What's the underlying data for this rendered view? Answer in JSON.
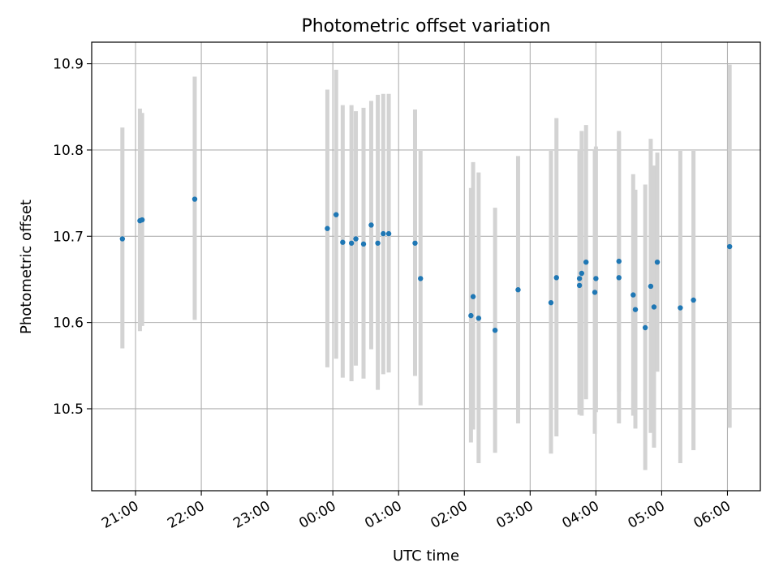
{
  "chart_data": {
    "type": "scatter",
    "title": "Photometric offset variation",
    "xlabel": "UTC time",
    "ylabel": "Photometric offset",
    "grid": true,
    "xlim": [
      "20:20",
      "06:30"
    ],
    "ylim": [
      10.405,
      10.925
    ],
    "x_ticks": [
      "21:00",
      "22:00",
      "23:00",
      "00:00",
      "01:00",
      "02:00",
      "03:00",
      "04:00",
      "05:00",
      "06:00"
    ],
    "y_ticks": [
      "10.5",
      "10.6",
      "10.7",
      "10.8",
      "10.9"
    ],
    "colors": {
      "point": "#1f77b4",
      "errorbar": "#d3d3d3",
      "grid": "#b0b0b0"
    },
    "points": [
      {
        "x": "20:48",
        "y": 10.697,
        "lo": 10.57,
        "hi": 10.826
      },
      {
        "x": "21:04",
        "y": 10.718,
        "lo": 10.59,
        "hi": 10.848
      },
      {
        "x": "21:06",
        "y": 10.719,
        "lo": 10.596,
        "hi": 10.843
      },
      {
        "x": "21:54",
        "y": 10.743,
        "lo": 10.603,
        "hi": 10.885
      },
      {
        "x": "23:55",
        "y": 10.709,
        "lo": 10.548,
        "hi": 10.87
      },
      {
        "x": "00:03",
        "y": 10.725,
        "lo": 10.558,
        "hi": 10.893
      },
      {
        "x": "00:09",
        "y": 10.693,
        "lo": 10.536,
        "hi": 10.852
      },
      {
        "x": "00:17",
        "y": 10.692,
        "lo": 10.532,
        "hi": 10.852
      },
      {
        "x": "00:21",
        "y": 10.697,
        "lo": 10.55,
        "hi": 10.845
      },
      {
        "x": "00:28",
        "y": 10.691,
        "lo": 10.535,
        "hi": 10.849
      },
      {
        "x": "00:35",
        "y": 10.713,
        "lo": 10.569,
        "hi": 10.857
      },
      {
        "x": "00:41",
        "y": 10.692,
        "lo": 10.522,
        "hi": 10.864
      },
      {
        "x": "00:46",
        "y": 10.703,
        "lo": 10.54,
        "hi": 10.865
      },
      {
        "x": "00:51",
        "y": 10.703,
        "lo": 10.542,
        "hi": 10.865
      },
      {
        "x": "01:15",
        "y": 10.692,
        "lo": 10.538,
        "hi": 10.847
      },
      {
        "x": "01:20",
        "y": 10.651,
        "lo": 10.504,
        "hi": 10.799
      },
      {
        "x": "02:06",
        "y": 10.608,
        "lo": 10.461,
        "hi": 10.756
      },
      {
        "x": "02:08",
        "y": 10.63,
        "lo": 10.476,
        "hi": 10.786
      },
      {
        "x": "02:13",
        "y": 10.605,
        "lo": 10.437,
        "hi": 10.774
      },
      {
        "x": "02:28",
        "y": 10.591,
        "lo": 10.449,
        "hi": 10.733
      },
      {
        "x": "02:49",
        "y": 10.638,
        "lo": 10.483,
        "hi": 10.793
      },
      {
        "x": "03:19",
        "y": 10.623,
        "lo": 10.448,
        "hi": 10.799
      },
      {
        "x": "03:24",
        "y": 10.652,
        "lo": 10.468,
        "hi": 10.837
      },
      {
        "x": "03:45",
        "y": 10.651,
        "lo": 10.502,
        "hi": 10.8
      },
      {
        "x": "03:45",
        "y": 10.643,
        "lo": 10.493,
        "hi": 10.795
      },
      {
        "x": "03:47",
        "y": 10.657,
        "lo": 10.492,
        "hi": 10.822
      },
      {
        "x": "03:51",
        "y": 10.67,
        "lo": 10.511,
        "hi": 10.829
      },
      {
        "x": "03:59",
        "y": 10.635,
        "lo": 10.471,
        "hi": 10.801
      },
      {
        "x": "04:00",
        "y": 10.651,
        "lo": 10.496,
        "hi": 10.804
      },
      {
        "x": "04:21",
        "y": 10.652,
        "lo": 10.483,
        "hi": 10.82
      },
      {
        "x": "04:21",
        "y": 10.671,
        "lo": 10.52,
        "hi": 10.822
      },
      {
        "x": "04:34",
        "y": 10.632,
        "lo": 10.492,
        "hi": 10.772
      },
      {
        "x": "04:36",
        "y": 10.615,
        "lo": 10.477,
        "hi": 10.754
      },
      {
        "x": "04:45",
        "y": 10.594,
        "lo": 10.429,
        "hi": 10.76
      },
      {
        "x": "04:50",
        "y": 10.642,
        "lo": 10.472,
        "hi": 10.813
      },
      {
        "x": "04:53",
        "y": 10.618,
        "lo": 10.455,
        "hi": 10.782
      },
      {
        "x": "04:56",
        "y": 10.67,
        "lo": 10.543,
        "hi": 10.797
      },
      {
        "x": "05:17",
        "y": 10.617,
        "lo": 10.437,
        "hi": 10.799
      },
      {
        "x": "05:29",
        "y": 10.626,
        "lo": 10.452,
        "hi": 10.799
      },
      {
        "x": "06:02",
        "y": 10.688,
        "lo": 10.478,
        "hi": 10.899
      }
    ]
  }
}
